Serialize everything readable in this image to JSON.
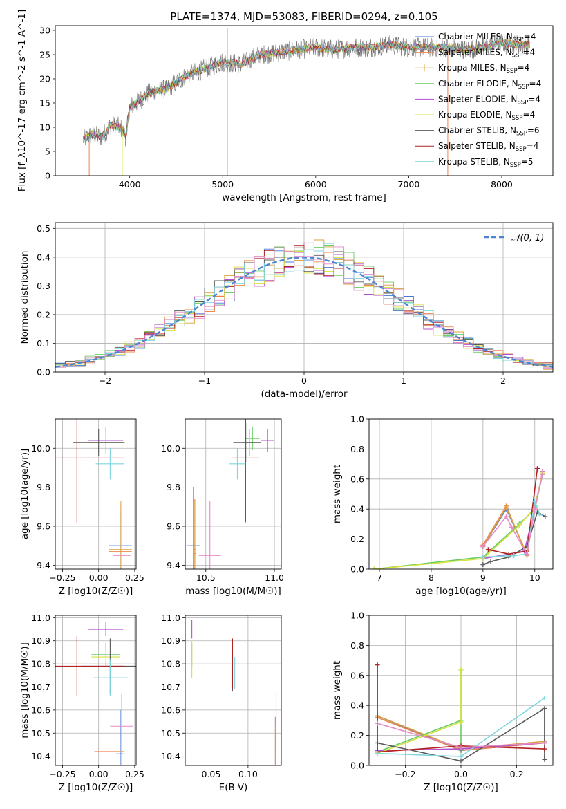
{
  "figure_title": "PLATE=1374, MJD=53083, FIBERID=0294, z=0.105",
  "colors": {
    "Chabrier MILES": "#4878d0",
    "Salpeter MILES": "#ee854a",
    "Kroupa MILES": "#d9a03d",
    "Chabrier ELODIE": "#6acc64",
    "Salpeter ELODIE": "#b44fd0",
    "Kroupa ELODIE": "#d5e23c",
    "Chabrier STELIB": "#595959",
    "Salpeter STELIB": "#b22222",
    "Kroupa STELIB": "#7ed6df",
    "pink": "#e38bc7",
    "gauss": "#4a84d4"
  },
  "chart_data": [
    {
      "id": "spectrum",
      "type": "line",
      "title": "PLATE=1374, MJD=53083, FIBERID=0294, z=0.105",
      "xlabel": "wavelength [Angstrom, rest frame]",
      "ylabel": "Flux [f_λ10^-17 erg cm^-2 s^-1 A^-1]",
      "xlim": [
        3200,
        8550
      ],
      "ylim": [
        0,
        31
      ],
      "xticks": [
        "4000",
        "5000",
        "6000",
        "7000",
        "8000"
      ],
      "yticks": [
        "0",
        "5",
        "10",
        "15",
        "20",
        "25",
        "30"
      ],
      "legend_position": "top-right",
      "legend": [
        {
          "label": "Chabrier MILES",
          "nssp": "=4",
          "key": "Chabrier MILES"
        },
        {
          "label": "Salpeter MILES",
          "nssp": "=4",
          "key": "Salpeter MILES"
        },
        {
          "label": "Kroupa MILES",
          "nssp": "=4",
          "key": "Kroupa MILES"
        },
        {
          "label": "Chabrier ELODIE",
          "nssp": "=4",
          "key": "Chabrier ELODIE"
        },
        {
          "label": "Salpeter ELODIE",
          "nssp": "=4",
          "key": "Salpeter ELODIE"
        },
        {
          "label": "Kroupa ELODIE",
          "nssp": "=4",
          "key": "Kroupa ELODIE"
        },
        {
          "label": "Chabrier STELIB",
          "nssp": "=6",
          "key": "Chabrier STELIB"
        },
        {
          "label": "Salpeter STELIB",
          "nssp": "=4",
          "key": "Salpeter STELIB"
        },
        {
          "label": "Kroupa STELIB",
          "nssp": "=5",
          "key": "Kroupa STELIB"
        }
      ],
      "continuum": [
        [
          3500,
          7.5
        ],
        [
          3600,
          8.5
        ],
        [
          3700,
          8.0
        ],
        [
          3800,
          10.5
        ],
        [
          3900,
          10.0
        ],
        [
          3960,
          8.0
        ],
        [
          4000,
          14.0
        ],
        [
          4200,
          17.0
        ],
        [
          4400,
          18.0
        ],
        [
          4600,
          20.5
        ],
        [
          4800,
          22.0
        ],
        [
          5000,
          23.5
        ],
        [
          5200,
          23.0
        ],
        [
          5400,
          25.0
        ],
        [
          5600,
          25.5
        ],
        [
          5800,
          26.0
        ],
        [
          6000,
          26.5
        ],
        [
          6200,
          26.0
        ],
        [
          6400,
          26.5
        ],
        [
          6600,
          26.5
        ],
        [
          6800,
          27.0
        ],
        [
          7000,
          26.5
        ],
        [
          7200,
          26.5
        ],
        [
          7400,
          26.5
        ],
        [
          7600,
          26.0
        ],
        [
          7800,
          26.5
        ],
        [
          8000,
          27.5
        ],
        [
          8200,
          27.0
        ],
        [
          8300,
          27.0
        ]
      ],
      "spikes": [
        [
          5050,
          0
        ],
        [
          5050,
          30.5
        ],
        [
          3920,
          0
        ],
        [
          6800,
          0
        ],
        [
          7420,
          0
        ],
        [
          3560,
          0
        ]
      ]
    },
    {
      "id": "residual_hist",
      "type": "histogram",
      "xlabel": "(data-model)/error",
      "ylabel": "Normed distribution",
      "xlim": [
        -2.5,
        2.5
      ],
      "ylim": [
        0,
        0.52
      ],
      "xticks": [
        "−2",
        "−1",
        "0",
        "1",
        "2"
      ],
      "yticks": [
        "0.0",
        "0.1",
        "0.2",
        "0.3",
        "0.4",
        "0.5"
      ],
      "bin_width": 0.1,
      "legend_label": "N(0,1)",
      "legend_position": "top-right"
    },
    {
      "id": "age_vs_Z",
      "type": "scatter",
      "xlabel": "Z [log10(Z/Z☉)]",
      "ylabel": "age [log10(age/yr)]",
      "xlim": [
        -0.3,
        0.26
      ],
      "ylim": [
        9.38,
        10.15
      ],
      "xticks": [
        "−0.25",
        "0.00",
        "0.25"
      ],
      "yticks": [
        "9.4",
        "9.6",
        "9.8",
        "10.0"
      ],
      "points": [
        {
          "key": "Chabrier MILES",
          "x": 0.15,
          "y": 9.5,
          "ex": 0.08,
          "ey": 0.18
        },
        {
          "key": "Salpeter MILES",
          "x": 0.15,
          "y": 9.47,
          "ex": 0.08,
          "ey": 0.25
        },
        {
          "key": "Kroupa MILES",
          "x": 0.15,
          "y": 9.48,
          "ex": 0.08,
          "ey": 0.25
        },
        {
          "key": "Chabrier ELODIE",
          "x": 0.05,
          "y": 10.04,
          "ex": 0.12,
          "ey": 0.07
        },
        {
          "key": "Salpeter ELODIE",
          "x": 0.05,
          "y": 10.04,
          "ex": 0.12,
          "ey": 0.05
        },
        {
          "key": "Kroupa ELODIE",
          "x": 0.05,
          "y": 10.03,
          "ex": 0.12,
          "ey": 0.06
        },
        {
          "key": "Chabrier STELIB",
          "x": 0.0,
          "y": 10.03,
          "ex": 0.18,
          "ey": 0.07
        },
        {
          "key": "Salpeter STELIB",
          "x": -0.15,
          "y": 9.95,
          "ex": 0.33,
          "ey": 0.33
        },
        {
          "key": "Kroupa STELIB",
          "x": 0.08,
          "y": 9.92,
          "ex": 0.1,
          "ey": 0.08
        },
        {
          "key": "pink",
          "x": 0.16,
          "y": 9.45,
          "ex": 0.06,
          "ey": 0.28
        }
      ]
    },
    {
      "id": "age_vs_mass",
      "type": "scatter",
      "xlabel": "mass [log10(M/M☉)]",
      "ylabel": "",
      "xlim": [
        10.35,
        11.05
      ],
      "ylim": [
        9.38,
        10.15
      ],
      "xticks": [
        "10.5",
        "11.0"
      ],
      "yticks": [
        "9.4",
        "9.6",
        "9.8",
        "10.0"
      ],
      "points": [
        {
          "key": "Chabrier MILES",
          "x": 10.41,
          "y": 9.5,
          "ex": 0.05,
          "ey": 0.3
        },
        {
          "key": "Salpeter MILES",
          "x": 10.42,
          "y": 9.46,
          "ex": 0.01,
          "ey": 0.28
        },
        {
          "key": "Kroupa MILES",
          "x": 10.42,
          "y": 9.48,
          "ex": 0.01,
          "ey": 0.25
        },
        {
          "key": "Chabrier ELODIE",
          "x": 10.84,
          "y": 10.05,
          "ex": 0.05,
          "ey": 0.06
        },
        {
          "key": "Salpeter ELODIE",
          "x": 10.95,
          "y": 10.04,
          "ex": 0.05,
          "ey": 0.06
        },
        {
          "key": "Kroupa ELODIE",
          "x": 10.82,
          "y": 10.03,
          "ex": 0.05,
          "ey": 0.07
        },
        {
          "key": "Chabrier STELIB",
          "x": 10.8,
          "y": 10.03,
          "ex": 0.1,
          "ey": 0.1
        },
        {
          "key": "Salpeter STELIB",
          "x": 10.79,
          "y": 9.95,
          "ex": 0.1,
          "ey": 0.33
        },
        {
          "key": "Kroupa STELIB",
          "x": 10.73,
          "y": 9.92,
          "ex": 0.06,
          "ey": 0.08
        },
        {
          "key": "pink",
          "x": 10.53,
          "y": 9.45,
          "ex": 0.08,
          "ey": 0.28
        }
      ]
    },
    {
      "id": "weight_vs_age",
      "type": "line",
      "xlabel": "age [log10(age/yr)]",
      "ylabel": "mass weight",
      "xlim": [
        6.8,
        10.35
      ],
      "ylim": [
        0,
        1.0
      ],
      "xticks": [
        "7",
        "8",
        "9",
        "10"
      ],
      "yticks": [
        "0.0",
        "0.2",
        "0.4",
        "0.6",
        "0.8",
        "1.0"
      ],
      "series": [
        {
          "key": "Chabrier MILES",
          "x": [
            9.0,
            9.45,
            9.85,
            10.0,
            10.15
          ],
          "y": [
            0.15,
            0.4,
            0.1,
            0.42,
            0.63
          ]
        },
        {
          "key": "Salpeter MILES",
          "x": [
            9.0,
            9.45,
            9.85,
            10.0,
            10.15
          ],
          "y": [
            0.16,
            0.42,
            0.09,
            0.41,
            0.63
          ]
        },
        {
          "key": "Kroupa MILES",
          "x": [
            9.0,
            9.45,
            9.85,
            10.0,
            10.15
          ],
          "y": [
            0.15,
            0.41,
            0.1,
            0.42,
            0.63
          ]
        },
        {
          "key": "Chabrier ELODIE",
          "x": [
            6.9,
            9.0,
            9.7,
            10.0,
            10.15
          ],
          "y": [
            0.0,
            0.08,
            0.3,
            0.4,
            0.63
          ]
        },
        {
          "key": "Salpeter ELODIE",
          "x": [
            9.0,
            9.5,
            9.8,
            10.0,
            10.15
          ],
          "y": [
            0.07,
            0.1,
            0.12,
            0.4,
            0.65
          ]
        },
        {
          "key": "Kroupa ELODIE",
          "x": [
            6.9,
            9.0,
            9.7,
            10.0,
            10.15
          ],
          "y": [
            0.0,
            0.07,
            0.29,
            0.41,
            0.64
          ]
        },
        {
          "key": "Chabrier STELIB",
          "x": [
            9.0,
            9.15,
            9.5,
            9.85,
            10.05,
            10.2
          ],
          "y": [
            0.03,
            0.05,
            0.08,
            0.15,
            0.38,
            0.35
          ]
        },
        {
          "key": "Salpeter STELIB",
          "x": [
            9.1,
            9.5,
            9.85,
            10.05
          ],
          "y": [
            0.13,
            0.1,
            0.12,
            0.67
          ]
        },
        {
          "key": "Kroupa STELIB",
          "x": [
            9.0,
            9.6,
            9.85,
            10.0,
            10.1
          ],
          "y": [
            0.08,
            0.09,
            0.1,
            0.45,
            0.36
          ]
        },
        {
          "key": "pink",
          "x": [
            9.0,
            9.45,
            9.55,
            9.85,
            10.0,
            10.15
          ],
          "y": [
            0.15,
            0.35,
            0.28,
            0.1,
            0.4,
            0.63
          ]
        }
      ]
    },
    {
      "id": "mass_vs_Z",
      "type": "scatter",
      "xlabel": "Z [log10(Z/Z☉)]",
      "ylabel": "mass [log10(M/M☉)]",
      "xlim": [
        -0.3,
        0.26
      ],
      "ylim": [
        10.36,
        11.01
      ],
      "xticks": [
        "−0.25",
        "0.00",
        "0.25"
      ],
      "yticks": [
        "10.4",
        "10.5",
        "10.6",
        "10.7",
        "10.8",
        "10.9",
        "11.0"
      ],
      "points": [
        {
          "key": "Chabrier MILES",
          "x": 0.15,
          "y": 10.41,
          "ex": 0.03,
          "ey": 0.19
        },
        {
          "key": "Salpeter MILES",
          "x": 0.07,
          "y": 10.42,
          "ex": 0.1,
          "ey": 0.0
        },
        {
          "key": "Kroupa MILES",
          "x": 0.16,
          "y": 10.42,
          "ex": 0.02,
          "ey": 0.16
        },
        {
          "key": "Chabrier ELODIE",
          "x": 0.05,
          "y": 10.84,
          "ex": 0.1,
          "ey": 0.05
        },
        {
          "key": "Salpeter ELODIE",
          "x": 0.05,
          "y": 10.95,
          "ex": 0.12,
          "ey": 0.03
        },
        {
          "key": "Kroupa ELODIE",
          "x": 0.05,
          "y": 10.83,
          "ex": 0.1,
          "ey": 0.04
        },
        {
          "key": "Chabrier STELIB",
          "x": 0.08,
          "y": 10.79,
          "ex": 0.2,
          "ey": 0.12
        },
        {
          "key": "Salpeter STELIB",
          "x": -0.15,
          "y": 10.79,
          "ex": 0.33,
          "ey": 0.13
        },
        {
          "key": "Kroupa STELIB",
          "x": 0.08,
          "y": 10.74,
          "ex": 0.12,
          "ey": 0.08
        },
        {
          "key": "pink",
          "x": 0.16,
          "y": 10.53,
          "ex": 0.08,
          "ey": 0.14
        }
      ]
    },
    {
      "id": "mass_vs_ebv",
      "type": "scatter",
      "xlabel": "E(B-V)",
      "ylabel": "",
      "xlim": [
        0.015,
        0.145
      ],
      "ylim": [
        10.36,
        11.01
      ],
      "xticks": [
        "0.05",
        "0.10"
      ],
      "yticks": [
        "10.4",
        "10.5",
        "10.6",
        "10.7",
        "10.8",
        "10.9",
        "11.0"
      ],
      "points": [
        {
          "key": "Chabrier MILES",
          "x": 0.137,
          "y": 10.45,
          "ex": 0,
          "ey": 0.12
        },
        {
          "key": "Salpeter MILES",
          "x": 0.137,
          "y": 10.42,
          "ex": 0,
          "ey": 0.15
        },
        {
          "key": "Kroupa MILES",
          "x": 0.137,
          "y": 10.44,
          "ex": 0,
          "ey": 0.1
        },
        {
          "key": "Chabrier ELODIE",
          "x": 0.024,
          "y": 10.84,
          "ex": 0,
          "ey": 0.05
        },
        {
          "key": "Salpeter ELODIE",
          "x": 0.024,
          "y": 10.95,
          "ex": 0,
          "ey": 0.04
        },
        {
          "key": "Kroupa ELODIE",
          "x": 0.024,
          "y": 10.82,
          "ex": 0,
          "ey": 0.08
        },
        {
          "key": "Chabrier STELIB",
          "x": 0.079,
          "y": 10.79,
          "ex": 0,
          "ey": 0.11
        },
        {
          "key": "Salpeter STELIB",
          "x": 0.079,
          "y": 10.8,
          "ex": 0,
          "ey": 0.11
        },
        {
          "key": "Kroupa STELIB",
          "x": 0.082,
          "y": 10.76,
          "ex": 0,
          "ey": 0.07
        },
        {
          "key": "pink",
          "x": 0.138,
          "y": 10.56,
          "ex": 0,
          "ey": 0.12
        }
      ]
    },
    {
      "id": "weight_vs_Z",
      "type": "line",
      "xlabel": "Z [log10(Z/Z☉)]",
      "ylabel": "mass weight",
      "xlim": [
        -0.33,
        0.33
      ],
      "ylim": [
        0,
        1.0
      ],
      "xticks": [
        "−0.2",
        "0.0",
        "0.2"
      ],
      "yticks": [
        "0.0",
        "0.2",
        "0.4",
        "0.6",
        "0.8",
        "1.0"
      ],
      "series": [
        {
          "key": "Chabrier MILES",
          "x": [
            -0.3,
            0.0,
            0.3
          ],
          "y": [
            0.33,
            0.1,
            0.15
          ]
        },
        {
          "key": "Salpeter MILES",
          "x": [
            -0.3,
            0.0,
            0.3
          ],
          "y": [
            0.32,
            0.1,
            0.15
          ]
        },
        {
          "key": "Kroupa MILES",
          "x": [
            -0.3,
            0.0,
            0.3
          ],
          "y": [
            0.33,
            0.11,
            0.16
          ]
        },
        {
          "key": "Chabrier ELODIE",
          "x": [
            -0.3,
            0.0,
            0.0,
            0.0
          ],
          "y": [
            0.09,
            0.3,
            0.63,
            0.1
          ]
        },
        {
          "key": "Salpeter ELODIE",
          "x": [
            -0.3,
            0.0,
            0.3
          ],
          "y": [
            0.1,
            0.11,
            0.15
          ]
        },
        {
          "key": "Kroupa ELODIE",
          "x": [
            -0.3,
            0.0,
            0.0
          ],
          "y": [
            0.08,
            0.29,
            0.64
          ]
        },
        {
          "key": "Chabrier STELIB",
          "x": [
            -0.3,
            0.0,
            0.3,
            0.3
          ],
          "y": [
            0.15,
            0.03,
            0.38,
            0.04
          ]
        },
        {
          "key": "Salpeter STELIB",
          "x": [
            -0.3,
            -0.3,
            0.0,
            0.3
          ],
          "y": [
            0.67,
            0.09,
            0.13,
            0.11
          ]
        },
        {
          "key": "Kroupa STELIB",
          "x": [
            -0.3,
            0.0,
            0.3
          ],
          "y": [
            0.08,
            0.06,
            0.45
          ]
        },
        {
          "key": "pink",
          "x": [
            -0.3,
            0.0,
            0.3
          ],
          "y": [
            0.28,
            0.12,
            0.15
          ]
        }
      ]
    }
  ]
}
